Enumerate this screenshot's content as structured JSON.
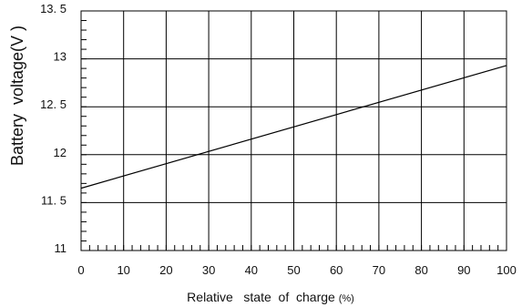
{
  "chart_data": {
    "type": "line",
    "title": "",
    "xlabel": "Relative   state  of  charge",
    "xlabel_unit": "(%)",
    "ylabel": "Battery  voltage(V )",
    "xlim": [
      0,
      100
    ],
    "ylim": [
      11,
      13.5
    ],
    "x_ticks": [
      0,
      10,
      20,
      30,
      40,
      50,
      60,
      70,
      80,
      90,
      100
    ],
    "y_ticks": [
      11,
      11.5,
      12,
      12.5,
      13,
      13.5
    ],
    "x_tick_labels": [
      "0",
      "10",
      "20",
      "30",
      "40",
      "50",
      "60",
      "70",
      "80",
      "90",
      "100"
    ],
    "y_tick_labels": [
      "11",
      "11. 5",
      "12",
      "12. 5",
      "13",
      "13. 5"
    ],
    "x_minor_step": 2,
    "y_minor_step": 0.1,
    "grid": true,
    "series": [
      {
        "x": [
          0,
          100
        ],
        "y": [
          11.65,
          12.93
        ],
        "color": "#000000"
      }
    ]
  }
}
